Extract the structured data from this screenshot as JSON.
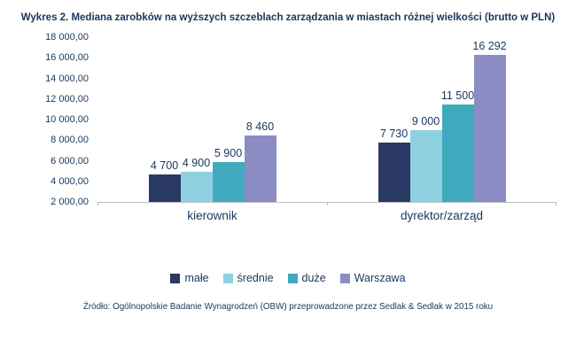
{
  "title": "Wykres 2. Mediana zarobków na wyższych szczeblach zarządzania w miastach różnej wielkości (brutto w PLN)",
  "source": "Źródło: Ogólnopolskie Badanie Wynagrodzeń (OBW) przeprowadzone przez Sedlak & Sedlak w 2015 roku",
  "chart_data": {
    "type": "bar",
    "title": "Wykres 2. Mediana zarobków na wyższych szczeblach zarządzania w miastach różnej wielkości (brutto w PLN)",
    "categories": [
      "kierownik",
      "dyrektor/zarząd"
    ],
    "series": [
      {
        "name": "małe",
        "color": "#2A3864",
        "values": [
          4700,
          7730
        ]
      },
      {
        "name": "średnie",
        "color": "#8DD1E1",
        "values": [
          4900,
          9000
        ]
      },
      {
        "name": "duże",
        "color": "#41A9BD",
        "values": [
          5900,
          11500
        ]
      },
      {
        "name": "Warszawa",
        "color": "#8B8CC4",
        "values": [
          8460,
          16292
        ]
      }
    ],
    "value_labels": [
      [
        "4 700",
        "4 900",
        "5 900",
        "8 460"
      ],
      [
        "7 730",
        "9 000",
        "11 500",
        "16 292"
      ]
    ],
    "y_ticks": [
      "18 000,00",
      "16 000,00",
      "14 000,00",
      "12 000,00",
      "10 000,00",
      "8 000,00",
      "6 000,00",
      "4 000,00",
      "2 000,00"
    ],
    "y_min": 2000,
    "y_max": 18000,
    "grid": false,
    "legend_position": "bottom",
    "axis_color": "#BFBFBF",
    "text_color": "#17375E"
  }
}
